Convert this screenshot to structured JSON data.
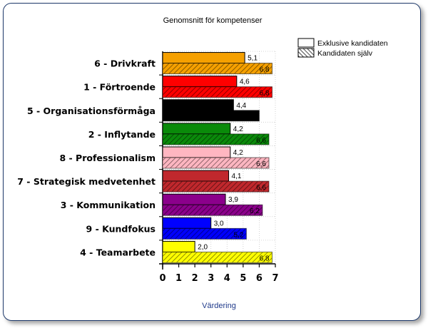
{
  "chart_data": {
    "type": "bar",
    "orientation": "horizontal",
    "title": "Genomsnitt för kompetenser",
    "xlabel": "Värdering",
    "ylabel": "",
    "xlim": [
      0,
      7
    ],
    "x_ticks": [
      "0",
      "1",
      "2",
      "3",
      "4",
      "5",
      "6",
      "7"
    ],
    "grid": "dotted",
    "legend_position": "top-right",
    "categories": [
      "6 - Drivkraft",
      "1 - Förtroende",
      "5 - Organisationsförmåga",
      "2 - Inflytande",
      "8 - Professionalism",
      "7 - Strategisk medvetenhet",
      "3 - Kommunikation",
      "9 - Kundfokus",
      "4 - Teamarbete"
    ],
    "category_colors": [
      "#f5a000",
      "#ff0000",
      "#000000",
      "#0a8a0a",
      "#ffb6c1",
      "#c0282d",
      "#8b008b",
      "#0000ff",
      "#ffff00"
    ],
    "series": [
      {
        "name": "Exklusive kandidaten",
        "pattern": "solid",
        "values": [
          5.1,
          4.6,
          4.4,
          4.2,
          4.2,
          4.1,
          3.9,
          3.0,
          2.0
        ],
        "labels": [
          "5,1",
          "4,6",
          "4,4",
          "4,2",
          "4,2",
          "4,1",
          "3,9",
          "3,0",
          "2,0"
        ]
      },
      {
        "name": "Kandidaten själv",
        "pattern": "hatched",
        "values": [
          6.8,
          6.8,
          6.0,
          6.6,
          6.6,
          6.6,
          6.2,
          5.2,
          6.8
        ],
        "labels": [
          "6,8",
          "6,8",
          "6,0",
          "6,6",
          "6,6",
          "6,6",
          "6,2",
          "5,2",
          "6,8"
        ]
      }
    ]
  }
}
